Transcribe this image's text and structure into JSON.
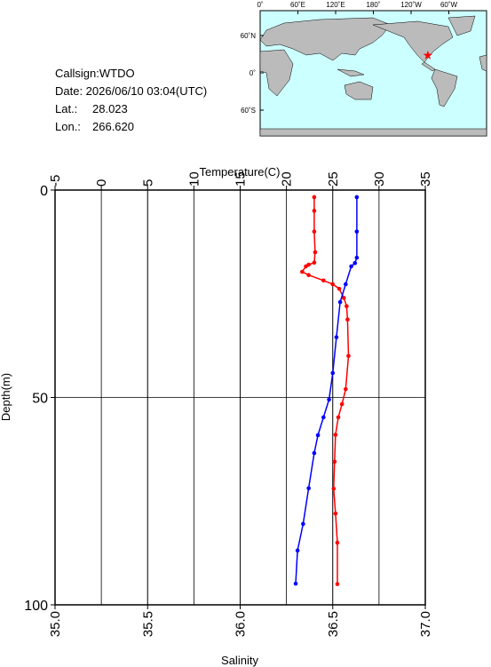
{
  "info": {
    "callsign": "Callsign:WTDO",
    "date": "Date:  2026/06/10 03:04(UTC)",
    "lat_label": "Lat.:",
    "lat": "28.023",
    "lon_label": "Lon.:",
    "lon": "266.620"
  },
  "map": {
    "lon_ticks": [
      {
        "value": 0,
        "label": "0˚"
      },
      {
        "value": 60,
        "label": "60˚E"
      },
      {
        "value": 120,
        "label": "120˚E"
      },
      {
        "value": 180,
        "label": "180˚"
      },
      {
        "value": 240,
        "label": "120˚W"
      },
      {
        "value": 300,
        "label": "60˚W"
      }
    ],
    "lat_ticks": [
      {
        "value": 60,
        "label": "60˚N"
      },
      {
        "value": 0,
        "label": "0˚"
      },
      {
        "value": -60,
        "label": "60˚S"
      }
    ],
    "marker_color": "#ff0000"
  },
  "chart_data": {
    "type": "line",
    "x_label": "Temperature(C)",
    "x2_label": "Salinity",
    "y_label": "Depth(m)",
    "xlim": [
      -5,
      35
    ],
    "xticks": [
      -5,
      0,
      5,
      10,
      15,
      20,
      25,
      30,
      35
    ],
    "x2lim": [
      35,
      37
    ],
    "x2ticks": [
      {
        "value": 35,
        "label": "35.0"
      },
      {
        "value": 35.5,
        "label": "35.5"
      },
      {
        "value": 36,
        "label": "36.0"
      },
      {
        "value": 36.5,
        "label": "36.5"
      },
      {
        "value": 37,
        "label": "37.0"
      }
    ],
    "ylim": [
      0,
      100
    ],
    "yticks": [
      0,
      50,
      100
    ],
    "y_inverted": true,
    "grid": true,
    "series": [
      {
        "color": "#ff0000",
        "axis": "x",
        "x": [
          23.0,
          23.0,
          23.0,
          23.1,
          23.0,
          22.4,
          22.1,
          21.7,
          22.4,
          24.0,
          25.0,
          25.7,
          26.2,
          26.5,
          26.6,
          26.7,
          26.4,
          26.0,
          25.6,
          25.3,
          25.2,
          25.1,
          25.3,
          25.5,
          25.5
        ],
        "y": [
          1.7,
          5,
          10,
          15,
          17.5,
          18.0,
          18.4,
          19.7,
          20.5,
          21.8,
          22.7,
          23.8,
          26.0,
          28.0,
          31.2,
          40,
          48,
          51.6,
          54.8,
          59,
          65.5,
          72,
          78,
          85,
          95
        ]
      },
      {
        "color": "#0000ff",
        "axis": "x2",
        "x": [
          36.63,
          36.63,
          36.63,
          36.62,
          36.6,
          36.57,
          36.54,
          36.52,
          36.5,
          36.48,
          36.45,
          36.42,
          36.4,
          36.37,
          36.34,
          36.31,
          36.3
        ],
        "y": [
          1.7,
          10,
          16.3,
          17.6,
          18.4,
          22.7,
          27.0,
          35.5,
          44.1,
          50.5,
          54.8,
          59.1,
          63.4,
          71.9,
          80.5,
          86.9,
          94.9
        ]
      }
    ]
  }
}
